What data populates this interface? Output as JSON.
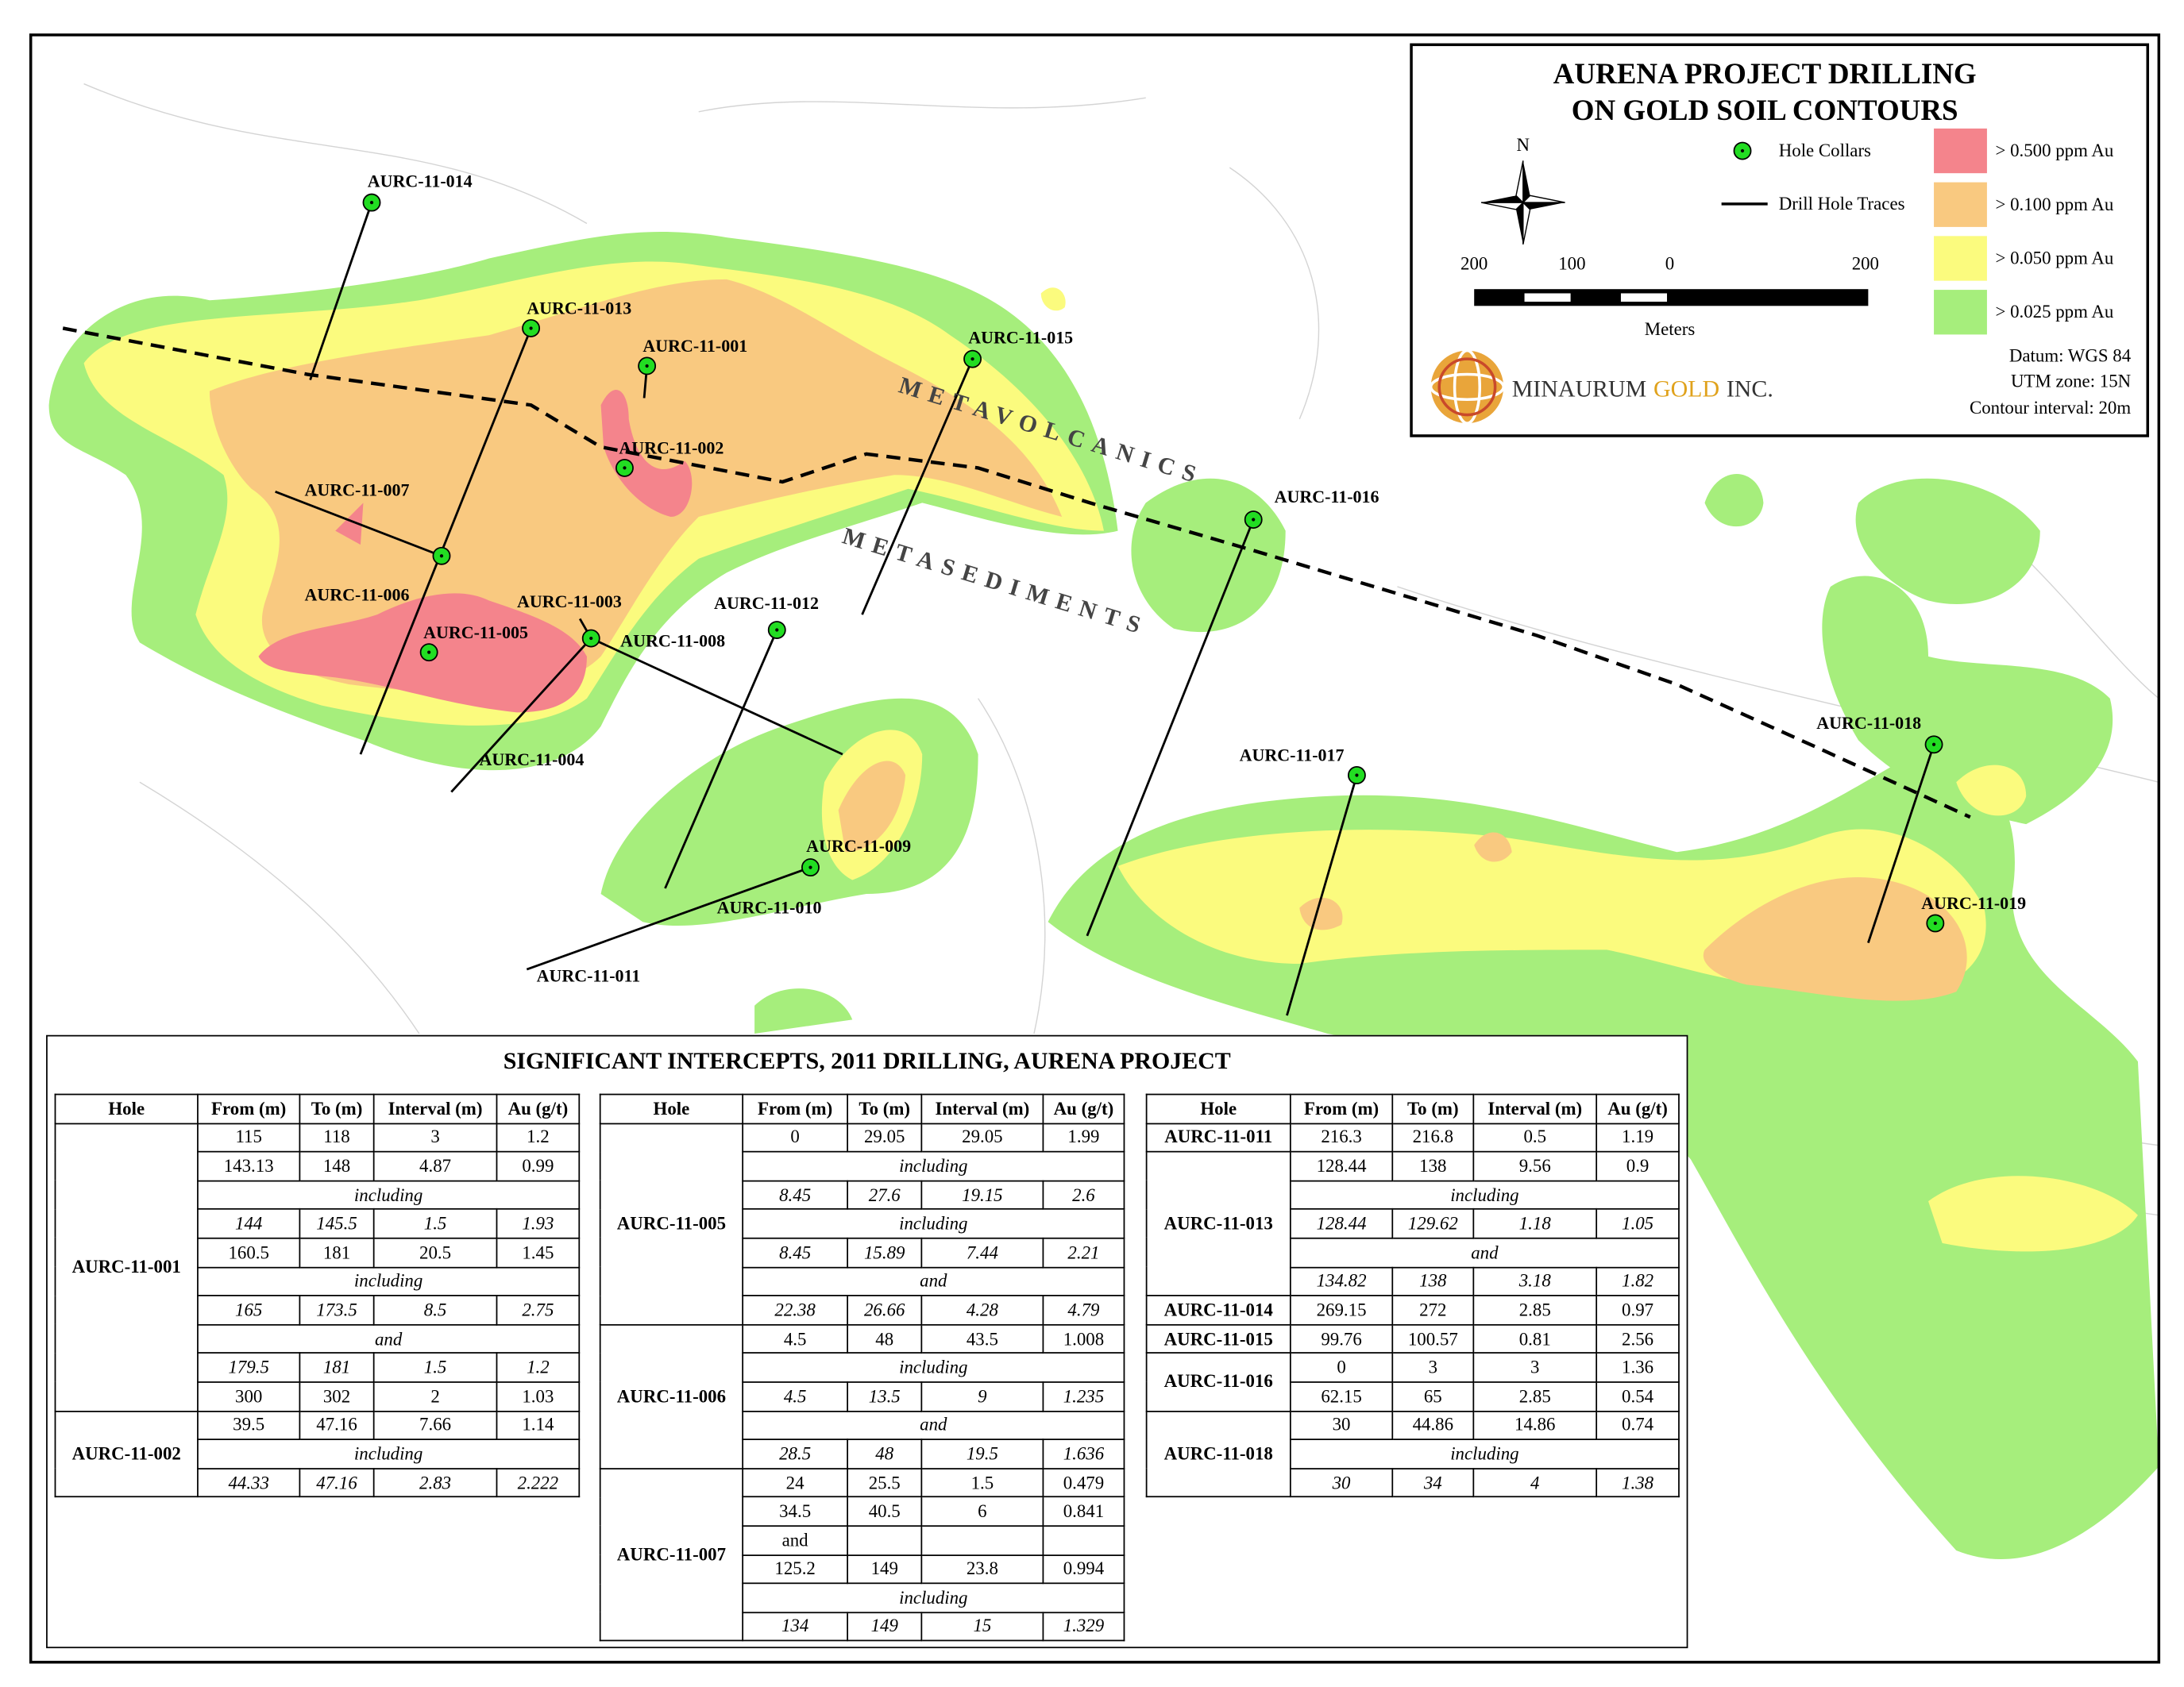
{
  "legend": {
    "title": [
      "AURENA PROJECT DRILLING",
      "ON GOLD SOIL CONTOURS"
    ],
    "north": "N",
    "symbols": [
      "Hole Collars",
      "Drill Hole Traces"
    ],
    "contours": [
      {
        "label": "> 0.500 ppm Au",
        "color": "#f4848c"
      },
      {
        "label": "> 0.100 ppm Au",
        "color": "#f9c980"
      },
      {
        "label": "> 0.050 ppm Au",
        "color": "#fbfb7e"
      },
      {
        "label": "> 0.025 ppm Au",
        "color": "#a6ee7c"
      }
    ],
    "scale": [
      "200",
      "100",
      "0",
      "200"
    ],
    "scale_unit": "Meters",
    "company": [
      "MINAURUM",
      "GOLD",
      "INC."
    ],
    "info": [
      "Datum: WGS 84",
      "UTM zone: 15N",
      "Contour interval: 20m"
    ]
  },
  "map": {
    "units": [
      "METAVOLCANICS",
      "METASEDIMENTS"
    ],
    "holes": [
      "AURC-11-014",
      "AURC-11-013",
      "AURC-11-001",
      "AURC-11-002",
      "AURC-11-015",
      "AURC-11-007",
      "AURC-11-006",
      "AURC-11-005",
      "AURC-11-003",
      "AURC-11-008",
      "AURC-11-004",
      "AURC-11-012",
      "AURC-11-009",
      "AURC-11-010",
      "AURC-11-011",
      "AURC-11-016",
      "AURC-11-017",
      "AURC-11-018",
      "AURC-11-019"
    ]
  },
  "table": {
    "title": "SIGNIFICANT INTERCEPTS, 2011 DRILLING, AURENA PROJECT",
    "headers": [
      "Hole",
      "From (m)",
      "To (m)",
      "Interval (m)",
      "Au (g/t)"
    ],
    "panels": [
      {
        "groups": [
          {
            "hole": "AURC-11-001",
            "rows": [
              {
                "cells": [
                  "115",
                  "118",
                  "3",
                  "1.2"
                ]
              },
              {
                "cells": [
                  "143.13",
                  "148",
                  "4.87",
                  "0.99"
                ]
              },
              {
                "note": "including"
              },
              {
                "cells": [
                  "144",
                  "145.5",
                  "1.5",
                  "1.93"
                ],
                "italic": true
              },
              {
                "cells": [
                  "160.5",
                  "181",
                  "20.5",
                  "1.45"
                ]
              },
              {
                "note": "including"
              },
              {
                "cells": [
                  "165",
                  "173.5",
                  "8.5",
                  "2.75"
                ],
                "italic": true
              },
              {
                "note": "and",
                "italic": true
              },
              {
                "cells": [
                  "179.5",
                  "181",
                  "1.5",
                  "1.2"
                ],
                "italic": true
              },
              {
                "cells": [
                  "300",
                  "302",
                  "2",
                  "1.03"
                ]
              }
            ]
          },
          {
            "hole": "AURC-11-002",
            "rows": [
              {
                "cells": [
                  "39.5",
                  "47.16",
                  "7.66",
                  "1.14"
                ]
              },
              {
                "note": "including"
              },
              {
                "cells": [
                  "44.33",
                  "47.16",
                  "2.83",
                  "2.222"
                ],
                "italic": true
              }
            ]
          }
        ]
      },
      {
        "groups": [
          {
            "hole": "AURC-11-005",
            "rows": [
              {
                "cells": [
                  "0",
                  "29.05",
                  "29.05",
                  "1.99"
                ]
              },
              {
                "note": "including"
              },
              {
                "cells": [
                  "8.45",
                  "27.6",
                  "19.15",
                  "2.6"
                ],
                "italic": true
              },
              {
                "note": "including"
              },
              {
                "cells": [
                  "8.45",
                  "15.89",
                  "7.44",
                  "2.21"
                ],
                "italic": true
              },
              {
                "note": "and"
              },
              {
                "cells": [
                  "22.38",
                  "26.66",
                  "4.28",
                  "4.79"
                ],
                "italic": true
              }
            ]
          },
          {
            "hole": "AURC-11-006",
            "rows": [
              {
                "cells": [
                  "4.5",
                  "48",
                  "43.5",
                  "1.008"
                ]
              },
              {
                "note": "including"
              },
              {
                "cells": [
                  "4.5",
                  "13.5",
                  "9",
                  "1.235"
                ],
                "italic": true
              },
              {
                "note": "and"
              },
              {
                "cells": [
                  "28.5",
                  "48",
                  "19.5",
                  "1.636"
                ],
                "italic": true
              }
            ]
          },
          {
            "hole": "AURC-11-007",
            "rows": [
              {
                "cells": [
                  "24",
                  "25.5",
                  "1.5",
                  "0.479"
                ]
              },
              {
                "cells": [
                  "34.5",
                  "40.5",
                  "6",
                  "0.841"
                ]
              },
              {
                "cells": [
                  "and"
                ]
              },
              {
                "cells": [
                  "125.2",
                  "149",
                  "23.8",
                  "0.994"
                ]
              },
              {
                "note": "including"
              },
              {
                "cells": [
                  "134",
                  "149",
                  "15",
                  "1.329"
                ],
                "italic": true
              }
            ]
          }
        ]
      },
      {
        "groups": [
          {
            "hole": "AURC-11-011",
            "rows": [
              {
                "cells": [
                  "216.3",
                  "216.8",
                  "0.5",
                  "1.19"
                ]
              }
            ]
          },
          {
            "hole": "AURC-11-013",
            "rows": [
              {
                "cells": [
                  "128.44",
                  "138",
                  "9.56",
                  "0.9"
                ]
              },
              {
                "note": "including"
              },
              {
                "cells": [
                  "128.44",
                  "129.62",
                  "1.18",
                  "1.05"
                ],
                "italic": true
              },
              {
                "note": "and"
              },
              {
                "cells": [
                  "134.82",
                  "138",
                  "3.18",
                  "1.82"
                ],
                "italic": true
              }
            ]
          },
          {
            "hole": "AURC-11-014",
            "rows": [
              {
                "cells": [
                  "269.15",
                  "272",
                  "2.85",
                  "0.97"
                ]
              }
            ]
          },
          {
            "hole": "AURC-11-015",
            "rows": [
              {
                "cells": [
                  "99.76",
                  "100.57",
                  "0.81",
                  "2.56"
                ]
              }
            ]
          },
          {
            "hole": "AURC-11-016",
            "rows": [
              {
                "cells": [
                  "0",
                  "3",
                  "3",
                  "1.36"
                ]
              },
              {
                "cells": [
                  "62.15",
                  "65",
                  "2.85",
                  "0.54"
                ]
              }
            ]
          },
          {
            "hole": "AURC-11-018",
            "rows": [
              {
                "cells": [
                  "30",
                  "44.86",
                  "14.86",
                  "0.74"
                ]
              },
              {
                "note": "including"
              },
              {
                "cells": [
                  "30",
                  "34",
                  "4",
                  "1.38"
                ],
                "italic": true
              }
            ]
          }
        ]
      }
    ]
  }
}
